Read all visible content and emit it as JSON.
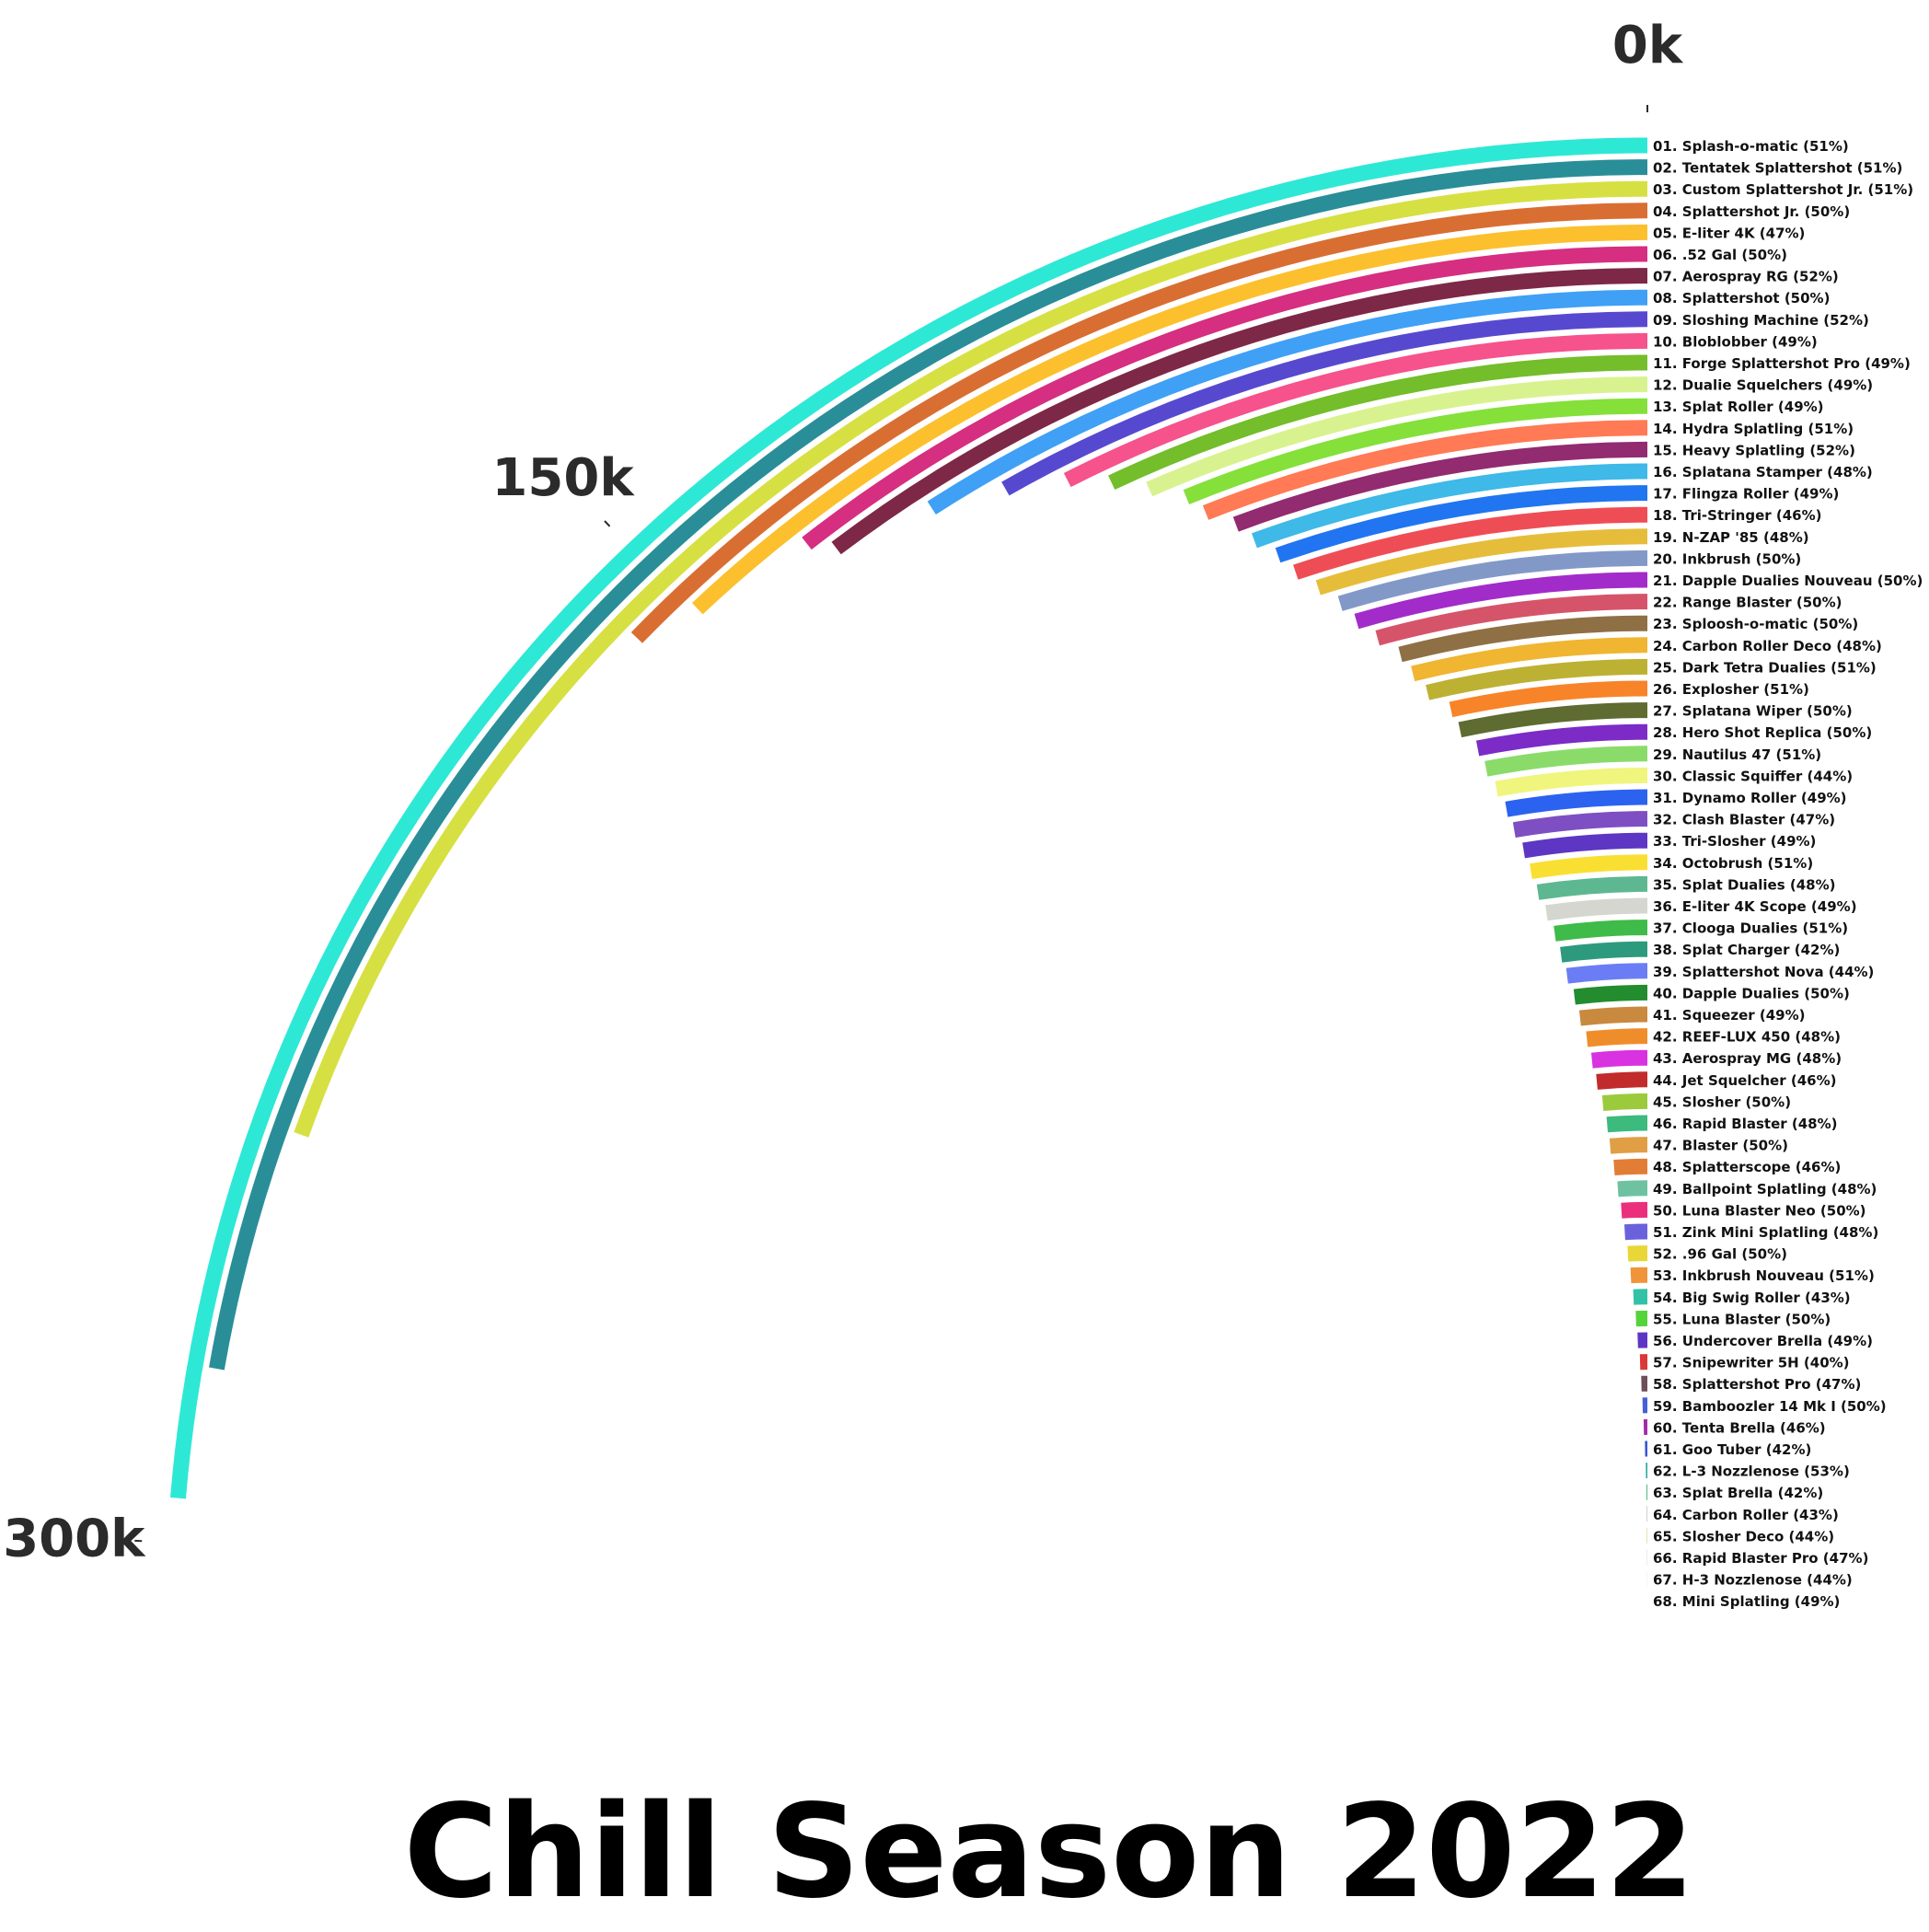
{
  "chart_data": {
    "type": "bar",
    "title": "Chill Season 2022",
    "axis": {
      "ticks": [
        0,
        150000,
        300000
      ],
      "tick_labels": [
        "0k",
        "150k",
        "300k"
      ],
      "range": [
        0,
        300000
      ]
    },
    "grid": false,
    "series": [
      {
        "label": "01. Splash-o-matic (51%)",
        "value": 294000,
        "color": "#2EE8D6"
      },
      {
        "label": "02. Tentatek Splattershot (51%)",
        "value": 276000,
        "color": "#2A8E98"
      },
      {
        "label": "03. Custom Splattershot Jr. (51%)",
        "value": 242000,
        "color": "#D7E042"
      },
      {
        "label": "04. Splattershot Jr. (50%)",
        "value": 158000,
        "color": "#D96E33"
      },
      {
        "label": "05. E-liter 4K (47%)",
        "value": 149000,
        "color": "#FCC02E"
      },
      {
        "label": "06. .52 Gal (50%)",
        "value": 131000,
        "color": "#D62E80"
      },
      {
        "label": "07. Aerospray RG (52%)",
        "value": 128000,
        "color": "#7D2847"
      },
      {
        "label": "08. Splattershot (50%)",
        "value": 113000,
        "color": "#3FA0F6"
      },
      {
        "label": "09. Sloshing Machine (52%)",
        "value": 102000,
        "color": "#5749CF"
      },
      {
        "label": "10. Bloblobber (49%)",
        "value": 93000,
        "color": "#F6528C"
      },
      {
        "label": "11. Forge Splattershot Pro (49%)",
        "value": 87000,
        "color": "#74BD2B"
      },
      {
        "label": "12. Dualie Squelchers (49%)",
        "value": 82000,
        "color": "#D9F290"
      },
      {
        "label": "13. Splat Roller (49%)",
        "value": 77000,
        "color": "#85E03A"
      },
      {
        "label": "14. Hydra Splatling (51%)",
        "value": 75000,
        "color": "#FF7A55"
      },
      {
        "label": "15. Heavy Splatling (52%)",
        "value": 71000,
        "color": "#922B70"
      },
      {
        "label": "16. Splatana Stamper (48%)",
        "value": 69000,
        "color": "#3EB9E8"
      },
      {
        "label": "17. Flingza Roller (49%)",
        "value": 66000,
        "color": "#2175F0"
      },
      {
        "label": "18. Tri-Stringer (46%)",
        "value": 64000,
        "color": "#EF4D55"
      },
      {
        "label": "19. N-ZAP '85 (48%)",
        "value": 61000,
        "color": "#E6BD3B"
      },
      {
        "label": "20. Inkbrush (50%)",
        "value": 58000,
        "color": "#8299C8"
      },
      {
        "label": "21. Dapple Dualies Nouveau (50%)",
        "value": 56000,
        "color": "#A22CC9"
      },
      {
        "label": "22. Range Blaster (50%)",
        "value": 53000,
        "color": "#D6546A"
      },
      {
        "label": "23. Sploosh-o-matic (50%)",
        "value": 49500,
        "color": "#8F7045"
      },
      {
        "label": "24. Carbon Roller Deco (48%)",
        "value": 48000,
        "color": "#F0B531"
      },
      {
        "label": "25. Dark Tetra Dualies (51%)",
        "value": 46000,
        "color": "#BDB134"
      },
      {
        "label": "26. Explosher (51%)",
        "value": 42000,
        "color": "#F88429"
      },
      {
        "label": "27. Splatana Wiper (50%)",
        "value": 41000,
        "color": "#5E6B31"
      },
      {
        "label": "28. Hero Shot Replica (50%)",
        "value": 38000,
        "color": "#7C2BC6"
      },
      {
        "label": "29. Nautilus 47 (51%)",
        "value": 37000,
        "color": "#8BDB6A"
      },
      {
        "label": "30. Classic Squiffer (44%)",
        "value": 35500,
        "color": "#F0F57E"
      },
      {
        "label": "31. Dynamo Roller (49%)",
        "value": 34000,
        "color": "#2B62F0"
      },
      {
        "label": "32. Clash Blaster (47%)",
        "value": 33000,
        "color": "#7E4FC2"
      },
      {
        "label": "33. Tri-Slosher (49%)",
        "value": 31500,
        "color": "#5E36C4"
      },
      {
        "label": "34. Octobrush (51%)",
        "value": 30500,
        "color": "#FADF33"
      },
      {
        "label": "35. Splat Dualies (48%)",
        "value": 29500,
        "color": "#5DB891"
      },
      {
        "label": "36. E-liter 4K Scope (49%)",
        "value": 28000,
        "color": "#D6D6D0"
      },
      {
        "label": "37. Clooga Dualies (51%)",
        "value": 26500,
        "color": "#3EBB48"
      },
      {
        "label": "38. Splat Charger (42%)",
        "value": 25500,
        "color": "#2D9A7E"
      },
      {
        "label": "39. Splattershot Nova (44%)",
        "value": 24500,
        "color": "#6B7DF5"
      },
      {
        "label": "40. Dapple Dualies (50%)",
        "value": 23000,
        "color": "#238C2E"
      },
      {
        "label": "41. Squeezer (49%)",
        "value": 22000,
        "color": "#C9893F"
      },
      {
        "label": "42. REEF-LUX 450 (48%)",
        "value": 20500,
        "color": "#F08D2B"
      },
      {
        "label": "43. Aerospray MG (48%)",
        "value": 19500,
        "color": "#D932E0"
      },
      {
        "label": "44. Jet Squelcher (46%)",
        "value": 18500,
        "color": "#C22B2B"
      },
      {
        "label": "45. Slosher (50%)",
        "value": 17000,
        "color": "#9BCB3C"
      },
      {
        "label": "46. Rapid Blaster (48%)",
        "value": 16000,
        "color": "#3DBA7E"
      },
      {
        "label": "47. Blaster (50%)",
        "value": 15500,
        "color": "#E09F45"
      },
      {
        "label": "48. Splatterscope (46%)",
        "value": 14500,
        "color": "#E27D36"
      },
      {
        "label": "49. Ballpoint Splatling (48%)",
        "value": 13500,
        "color": "#6FC2A1"
      },
      {
        "label": "50. Luna Blaster Neo (50%)",
        "value": 12500,
        "color": "#EB2F7D"
      },
      {
        "label": "51. Zink Mini Splatling (48%)",
        "value": 11500,
        "color": "#6A62DD"
      },
      {
        "label": "52. .96 Gal (50%)",
        "value": 10500,
        "color": "#E8D737"
      },
      {
        "label": "53. Inkbrush Nouveau (51%)",
        "value": 9500,
        "color": "#F0943A"
      },
      {
        "label": "54. Big Swig Roller (43%)",
        "value": 8500,
        "color": "#33C2A8"
      },
      {
        "label": "55. Luna Blaster (50%)",
        "value": 7500,
        "color": "#55D33A"
      },
      {
        "label": "56. Undercover Brella (49%)",
        "value": 6800,
        "color": "#5E36C4"
      },
      {
        "label": "57. Snipewriter 5H (40%)",
        "value": 5600,
        "color": "#DB3838"
      },
      {
        "label": "58. Splattershot Pro (47%)",
        "value": 5000,
        "color": "#6E4E5A"
      },
      {
        "label": "59. Bamboozler 14 Mk I (50%)",
        "value": 4400,
        "color": "#4561D6"
      },
      {
        "label": "60. Tenta Brella (46%)",
        "value": 3700,
        "color": "#A22CA8"
      },
      {
        "label": "61. Goo Tuber (42%)",
        "value": 2700,
        "color": "#3457D1"
      },
      {
        "label": "62. L-3 Nozzlenose (53%)",
        "value": 2000,
        "color": "#2BAAA0"
      },
      {
        "label": "63. Splat Brella (42%)",
        "value": 1300,
        "color": "#3CB36F"
      },
      {
        "label": "64. Carbon Roller (43%)",
        "value": 1000,
        "color": "#A9B3A8"
      },
      {
        "label": "65. Slosher Deco (44%)",
        "value": 800,
        "color": "#C9A93F"
      },
      {
        "label": "66. Rapid Blaster Pro (47%)",
        "value": 600,
        "color": "#8FB3A0"
      },
      {
        "label": "67. H-3 Nozzlenose (44%)",
        "value": 450,
        "color": "#9AA39A"
      },
      {
        "label": "68. Mini Splatling (49%)",
        "value": 300,
        "color": "#D7D2B0"
      }
    ]
  }
}
